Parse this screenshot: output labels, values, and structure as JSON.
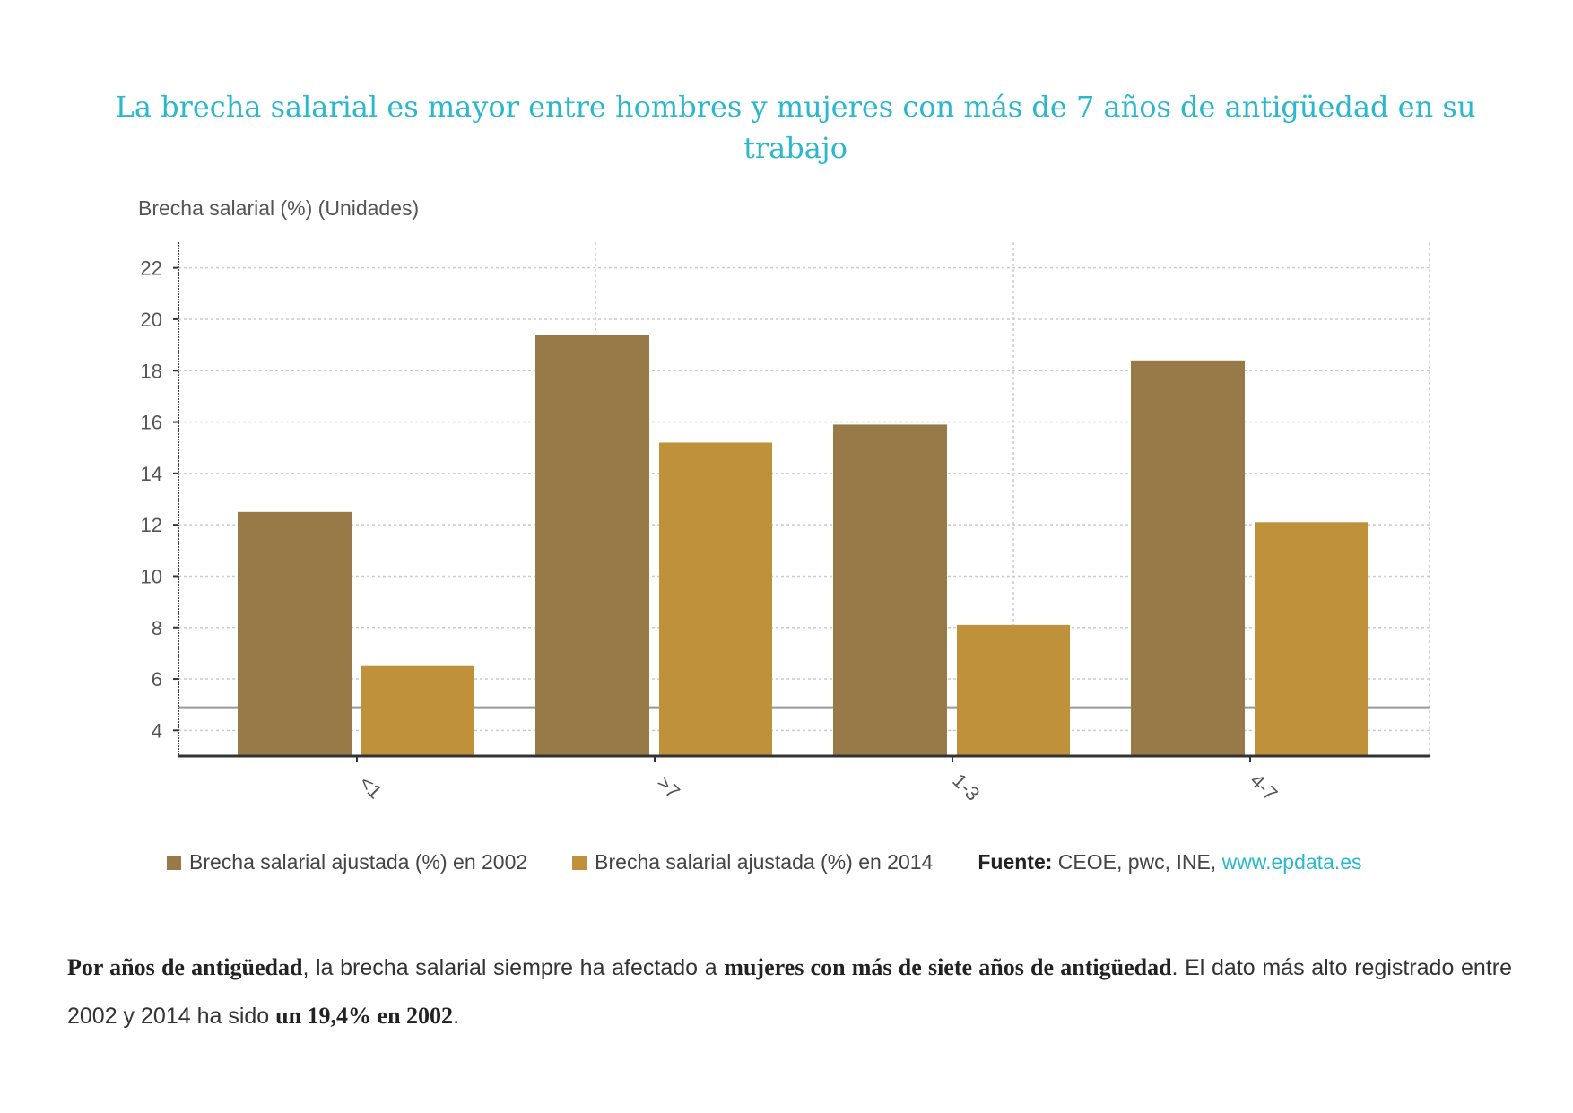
{
  "chart_data": {
    "type": "bar",
    "title": "La brecha salarial es mayor entre hombres y mujeres con más de 7 años de antigüedad en su trabajo",
    "ylabel": "Brecha salarial (%) (Unidades)",
    "xlabel": "",
    "categories": [
      "<1",
      ">7",
      "1-3",
      "4-7"
    ],
    "series": [
      {
        "name": "Brecha salarial ajustada (%) en 2002",
        "values": [
          12.5,
          19.4,
          15.9,
          18.4
        ],
        "color": "#977a47"
      },
      {
        "name": "Brecha salarial ajustada (%) en 2014",
        "values": [
          6.5,
          15.2,
          8.1,
          12.1
        ],
        "color": "#bf913b"
      }
    ],
    "ylim": [
      3,
      23
    ],
    "yticks": [
      4,
      6,
      8,
      10,
      12,
      14,
      16,
      18,
      20,
      22
    ],
    "reference_line": 4.9,
    "grid": true,
    "legend_position": "bottom"
  },
  "source": {
    "label": "Fuente:",
    "text": "CEOE, pwc, INE,",
    "link": "www.epdata.es"
  },
  "paragraph": {
    "b1": "Por años de antigüedad",
    "t1": ", la brecha salarial siempre ha afectado a ",
    "b2": "mujeres con más de siete años de antigüedad",
    "t2": ". El dato más alto registrado entre 2002 y 2014 ha sido ",
    "b3": "un 19,4% en 2002",
    "t3": "."
  }
}
